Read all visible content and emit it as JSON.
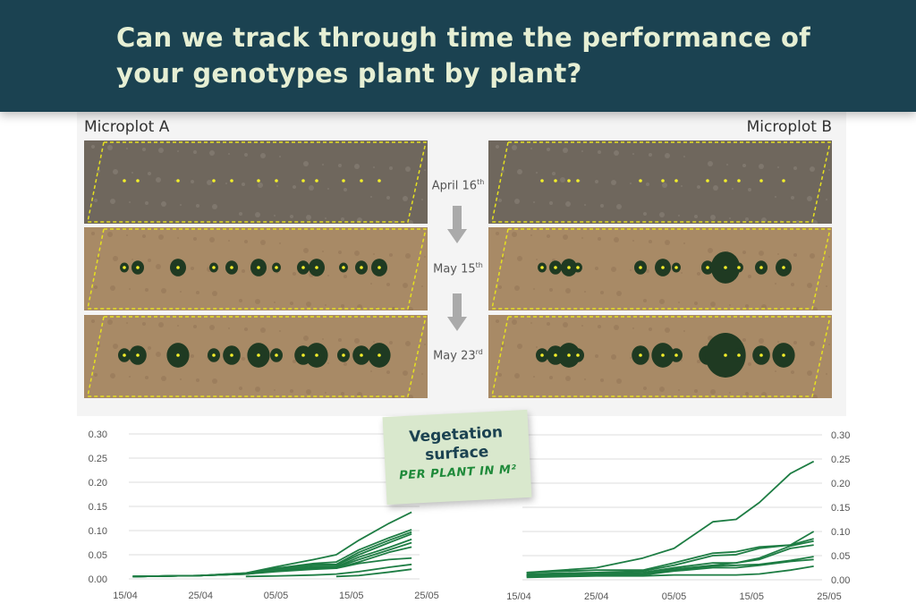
{
  "header": {
    "title": "Can we track through time the performance of your genotypes plant by plant?"
  },
  "microplots": [
    {
      "label": "Microplot A"
    },
    {
      "label": "Microplot B"
    }
  ],
  "dates": [
    {
      "main": "April 16",
      "sup": "th"
    },
    {
      "main": "May 15",
      "sup": "th"
    },
    {
      "main": "May 23",
      "sup": "rd"
    }
  ],
  "callout": {
    "title": "Vegetation surface",
    "subtitle": "PER PLANT IN M²"
  },
  "colors": {
    "header_bg": "#1b4251",
    "header_text": "#e6efd4",
    "line": "#1e7d44",
    "callout_bg": "#d9e8cd",
    "callout_sub": "#1f8a3a"
  },
  "chart_data": [
    {
      "type": "line",
      "title": "",
      "xlabel": "",
      "ylabel": "",
      "x": [
        "16/04",
        "25/04",
        "01/05",
        "05/05",
        "10/05",
        "13/05",
        "16/05",
        "20/05",
        "23/05"
      ],
      "xticks": [
        "15/04",
        "25/04",
        "05/05",
        "15/05",
        "25/05"
      ],
      "yticks": [
        "0.00",
        "0.05",
        "0.10",
        "0.15",
        "0.20",
        "0.25",
        "0.30"
      ],
      "ylim": [
        0,
        0.3
      ],
      "grid": true,
      "series": [
        {
          "values": [
            0.005,
            0.007,
            0.012,
            0.025,
            0.04,
            0.05,
            0.08,
            0.115,
            0.138
          ]
        },
        {
          "values": [
            0.005,
            0.007,
            0.012,
            0.022,
            0.032,
            0.035,
            0.06,
            0.085,
            0.102
          ]
        },
        {
          "values": [
            0.005,
            0.007,
            0.011,
            0.02,
            0.03,
            0.03,
            0.055,
            0.08,
            0.097
          ]
        },
        {
          "values": [
            0.005,
            0.007,
            0.011,
            0.02,
            0.028,
            0.028,
            0.05,
            0.075,
            0.093
          ]
        },
        {
          "values": [
            0.005,
            0.007,
            0.01,
            0.018,
            0.025,
            0.025,
            0.045,
            0.065,
            0.082
          ]
        },
        {
          "values": [
            0.005,
            0.007,
            0.01,
            0.018,
            0.024,
            0.024,
            0.04,
            0.06,
            0.075
          ]
        },
        {
          "values": [
            0.005,
            0.007,
            0.01,
            0.016,
            0.022,
            0.022,
            0.035,
            0.055,
            0.066
          ]
        },
        {
          "values": [
            0.005,
            0.007,
            0.01,
            0.015,
            0.02,
            0.022,
            0.032,
            0.04,
            0.043
          ]
        },
        {
          "values": [
            null,
            null,
            0.005,
            0.006,
            0.008,
            0.01,
            0.015,
            0.024,
            0.03
          ]
        },
        {
          "values": [
            null,
            null,
            null,
            null,
            null,
            0.005,
            0.007,
            0.014,
            0.02
          ]
        }
      ]
    },
    {
      "type": "line",
      "title": "",
      "xlabel": "",
      "ylabel": "",
      "x": [
        "16/04",
        "25/04",
        "01/05",
        "05/05",
        "10/05",
        "13/05",
        "16/05",
        "20/05",
        "23/05"
      ],
      "xticks": [
        "15/04",
        "25/04",
        "05/05",
        "15/05",
        "25/05"
      ],
      "yticks": [
        "0.00",
        "0.05",
        "0.10",
        "0.15",
        "0.20",
        "0.25",
        "0.30"
      ],
      "ylim": [
        0,
        0.3
      ],
      "grid": true,
      "series": [
        {
          "values": [
            0.015,
            0.025,
            0.045,
            0.065,
            0.12,
            0.125,
            0.16,
            0.22,
            0.245
          ]
        },
        {
          "values": [
            0.015,
            0.02,
            0.02,
            0.035,
            0.055,
            0.058,
            0.068,
            0.072,
            0.085
          ]
        },
        {
          "values": [
            0.012,
            0.015,
            0.018,
            0.03,
            0.05,
            0.052,
            0.065,
            0.072,
            0.1
          ]
        },
        {
          "values": [
            0.01,
            0.012,
            0.015,
            0.025,
            0.035,
            0.035,
            0.045,
            0.07,
            0.08
          ]
        },
        {
          "values": [
            0.01,
            0.012,
            0.015,
            0.022,
            0.03,
            0.035,
            0.042,
            0.065,
            0.072
          ]
        },
        {
          "values": [
            0.008,
            0.01,
            0.012,
            0.02,
            0.028,
            0.03,
            0.032,
            0.04,
            0.048
          ]
        },
        {
          "values": [
            0.008,
            0.01,
            0.01,
            0.018,
            0.025,
            0.025,
            0.03,
            0.038,
            0.042
          ]
        },
        {
          "values": [
            0.005,
            0.008,
            0.008,
            0.01,
            0.01,
            0.01,
            0.012,
            0.02,
            0.028
          ]
        }
      ]
    }
  ]
}
